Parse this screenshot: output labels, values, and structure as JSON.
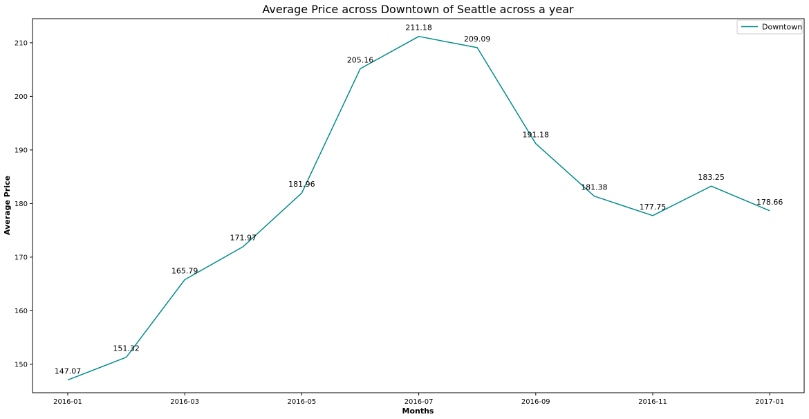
{
  "chart_data": {
    "type": "line",
    "title": "Average Price across Downtown of Seattle across a year",
    "xlabel": "Months",
    "ylabel": "Average Price",
    "x": [
      "2016-01",
      "2016-02",
      "2016-03",
      "2016-04",
      "2016-05",
      "2016-06",
      "2016-07",
      "2016-08",
      "2016-09",
      "2016-10",
      "2016-11",
      "2016-12",
      "2017-01"
    ],
    "x_ticks": [
      "2016-01",
      "2016-03",
      "2016-05",
      "2016-07",
      "2016-09",
      "2016-11",
      "2017-01"
    ],
    "y_ticks": [
      150,
      160,
      170,
      180,
      190,
      200,
      210
    ],
    "ylim": [
      144.7,
      214.5
    ],
    "grid": false,
    "legend": "top-right",
    "series": [
      {
        "name": "Downtown",
        "color": "#008b8b",
        "values": [
          147.07,
          151.32,
          165.79,
          171.97,
          181.96,
          205.16,
          211.18,
          209.09,
          191.18,
          181.38,
          177.75,
          183.25,
          178.66
        ],
        "labels": [
          "147.07",
          "151.32",
          "165.79",
          "171.97",
          "181.96",
          "205.16",
          "211.18",
          "209.09",
          "191.18",
          "181.38",
          "177.75",
          "183.25",
          "178.66"
        ]
      }
    ]
  }
}
